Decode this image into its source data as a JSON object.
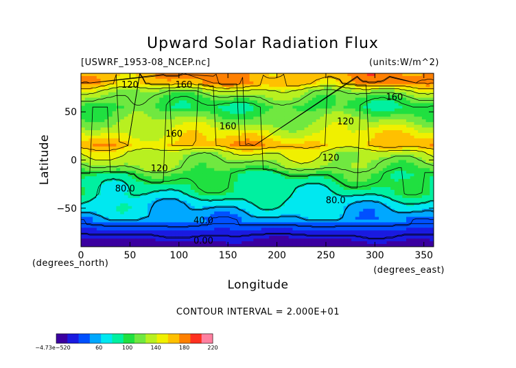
{
  "chart_data": {
    "type": "heatmap",
    "title": "Upward Solar Radiation Flux",
    "source_label": "[USWRF_1953-08_NCEP.nc]",
    "units_label": "(units:W/m^2)",
    "xlabel": "Longitude",
    "ylabel": "Latitude",
    "x_unit_label": "(degrees_east)",
    "y_unit_label": "(degrees_north)",
    "xlim": [
      0,
      360
    ],
    "ylim": [
      -90,
      90
    ],
    "x_ticks": [
      0,
      50,
      100,
      150,
      200,
      250,
      300,
      350
    ],
    "y_ticks": [
      -50,
      0,
      50
    ],
    "contour_interval_text": "CONTOUR INTERVAL = 2.000E+01",
    "contour_interval": 20,
    "value_range": [
      0,
      220
    ],
    "contour_labels": [
      {
        "text": "120",
        "lon": 50,
        "lat": 78
      },
      {
        "text": "160",
        "lon": 105,
        "lat": 78
      },
      {
        "text": "160",
        "lon": 320,
        "lat": 65
      },
      {
        "text": "160",
        "lon": 150,
        "lat": 35
      },
      {
        "text": "160",
        "lon": 95,
        "lat": 27
      },
      {
        "text": "120",
        "lon": 270,
        "lat": 40
      },
      {
        "text": "120",
        "lon": 255,
        "lat": 2
      },
      {
        "text": "120",
        "lon": 80,
        "lat": -9
      },
      {
        "text": "80.0",
        "lon": 45,
        "lat": -30
      },
      {
        "text": "80.0",
        "lon": 260,
        "lat": -42
      },
      {
        "text": "40.0",
        "lon": 125,
        "lat": -63
      },
      {
        "text": "0.00",
        "lon": 125,
        "lat": -84
      }
    ],
    "colorbar": {
      "tick_labels": [
        "−4.73e−520",
        "60",
        "100",
        "140",
        "180",
        "220"
      ],
      "tick_values": [
        20,
        60,
        100,
        140,
        180,
        220
      ],
      "colors": [
        "#3b00a0",
        "#1a1ae0",
        "#0050ff",
        "#00a8ff",
        "#00e8f0",
        "#00f0a0",
        "#20e040",
        "#70e840",
        "#b8f020",
        "#f0f000",
        "#ffc000",
        "#ff8000",
        "#ff3020",
        "#ff80a0"
      ]
    },
    "latitude_profile": {
      "lat": [
        -90,
        -78,
        -68,
        -58,
        -45,
        -35,
        -25,
        -15,
        -8,
        0,
        8,
        15,
        22,
        30,
        42,
        55,
        65,
        72,
        80,
        90
      ],
      "value": [
        10,
        20,
        40,
        58,
        70,
        85,
        92,
        100,
        118,
        128,
        138,
        165,
        155,
        142,
        122,
        100,
        115,
        130,
        170,
        172
      ]
    }
  }
}
